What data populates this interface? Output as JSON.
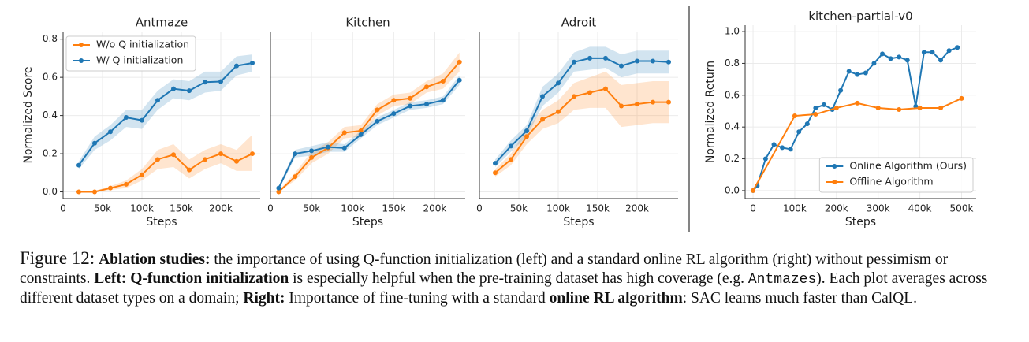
{
  "chart_data": [
    {
      "type": "line",
      "title": "Antmaze",
      "xlabel": "Steps",
      "ylabel": "Normalized Score",
      "xlim": [
        0,
        250000
      ],
      "xticks": [
        0,
        {
          "value": 50000,
          "label": "50k"
        },
        {
          "value": 100000,
          "label": "100k"
        },
        {
          "value": 150000,
          "label": "150k"
        },
        {
          "value": 200000,
          "label": "200k"
        }
      ],
      "ylim": [
        -0.035,
        0.84
      ],
      "yticks": [
        {
          "value": 0,
          "label": "0.0"
        },
        0.2,
        0.4,
        0.6,
        0.8
      ],
      "grid": true,
      "legend": "upper left",
      "x": [
        20000,
        40000,
        60000,
        80000,
        100000,
        120000,
        140000,
        160000,
        180000,
        200000,
        220000,
        240000
      ],
      "series": [
        {
          "name": "W/o Q initialization",
          "color": "#ff7f0e",
          "values": [
            0,
            0,
            0.02,
            0.04,
            0.09,
            0.17,
            0.195,
            0.115,
            0.17,
            0.2,
            0.16,
            0.2
          ],
          "lower": [
            0,
            0,
            0.01,
            0.02,
            0.06,
            0.12,
            0.13,
            0.07,
            0.12,
            0.15,
            0.11,
            0.11
          ],
          "upper": [
            0.003,
            0.005,
            0.03,
            0.06,
            0.12,
            0.22,
            0.25,
            0.17,
            0.22,
            0.25,
            0.22,
            0.3
          ]
        },
        {
          "name": "W/ Q initialization",
          "color": "#1f77b4",
          "values": [
            0.14,
            0.255,
            0.315,
            0.39,
            0.375,
            0.48,
            0.54,
            0.53,
            0.575,
            0.578,
            0.66,
            0.675
          ],
          "lower": [
            0.12,
            0.22,
            0.27,
            0.34,
            0.33,
            0.43,
            0.49,
            0.48,
            0.52,
            0.53,
            0.61,
            0.63
          ],
          "upper": [
            0.16,
            0.29,
            0.35,
            0.43,
            0.43,
            0.53,
            0.59,
            0.58,
            0.63,
            0.63,
            0.71,
            0.72
          ]
        }
      ]
    },
    {
      "type": "line",
      "title": "Kitchen",
      "xlabel": "Steps",
      "xlim": [
        0,
        237000
      ],
      "xticks": [
        0,
        {
          "value": 50000,
          "label": "50k"
        },
        {
          "value": 100000,
          "label": "100k"
        },
        {
          "value": 150000,
          "label": "150k"
        },
        {
          "value": 200000,
          "label": "200k"
        }
      ],
      "ylim": [
        -0.035,
        0.84
      ],
      "ygrid": [
        0,
        0.2,
        0.4,
        0.6,
        0.8
      ],
      "grid": true,
      "x": [
        10000,
        30000,
        50000,
        70000,
        90000,
        110000,
        130000,
        150000,
        170000,
        190000,
        210000,
        230000
      ],
      "series": [
        {
          "color": "#ff7f0e",
          "values": [
            0,
            0.08,
            0.18,
            0.23,
            0.31,
            0.32,
            0.43,
            0.48,
            0.49,
            0.55,
            0.58,
            0.68
          ],
          "lower": [
            0,
            0.06,
            0.15,
            0.2,
            0.28,
            0.29,
            0.4,
            0.45,
            0.46,
            0.52,
            0.54,
            0.63
          ],
          "upper": [
            0.005,
            0.1,
            0.21,
            0.26,
            0.34,
            0.35,
            0.46,
            0.51,
            0.52,
            0.58,
            0.62,
            0.73
          ]
        },
        {
          "color": "#1f77b4",
          "values": [
            0.02,
            0.2,
            0.215,
            0.235,
            0.23,
            0.3,
            0.37,
            0.41,
            0.45,
            0.46,
            0.48,
            0.585
          ],
          "lower": [
            0.01,
            0.18,
            0.19,
            0.21,
            0.21,
            0.28,
            0.35,
            0.39,
            0.43,
            0.44,
            0.46,
            0.56
          ],
          "upper": [
            0.03,
            0.22,
            0.24,
            0.26,
            0.25,
            0.32,
            0.39,
            0.43,
            0.47,
            0.48,
            0.5,
            0.61
          ]
        }
      ]
    },
    {
      "type": "line",
      "title": "Adroit",
      "xlabel": "Steps",
      "xlim": [
        0,
        252000
      ],
      "xticks": [
        0,
        {
          "value": 50000,
          "label": "50k"
        },
        {
          "value": 100000,
          "label": "100k"
        },
        {
          "value": 150000,
          "label": "150k"
        },
        {
          "value": 200000,
          "label": "200k"
        }
      ],
      "ylim": [
        -0.035,
        0.84
      ],
      "ygrid": [
        0,
        0.2,
        0.4,
        0.6,
        0.8
      ],
      "grid": true,
      "x": [
        20000,
        40000,
        60000,
        80000,
        100000,
        120000,
        140000,
        160000,
        180000,
        200000,
        220000,
        240000
      ],
      "series": [
        {
          "color": "#ff7f0e",
          "values": [
            0.1,
            0.17,
            0.29,
            0.38,
            0.42,
            0.5,
            0.52,
            0.54,
            0.45,
            0.46,
            0.47,
            0.47
          ],
          "lower": [
            0.08,
            0.14,
            0.25,
            0.33,
            0.36,
            0.43,
            0.44,
            0.44,
            0.34,
            0.35,
            0.36,
            0.36
          ],
          "upper": [
            0.12,
            0.2,
            0.33,
            0.43,
            0.48,
            0.57,
            0.6,
            0.63,
            0.56,
            0.57,
            0.58,
            0.58
          ]
        },
        {
          "color": "#1f77b4",
          "values": [
            0.15,
            0.24,
            0.32,
            0.5,
            0.57,
            0.68,
            0.7,
            0.7,
            0.66,
            0.685,
            0.685,
            0.68
          ],
          "lower": [
            0.13,
            0.21,
            0.29,
            0.45,
            0.52,
            0.63,
            0.64,
            0.65,
            0.6,
            0.62,
            0.62,
            0.62
          ],
          "upper": [
            0.17,
            0.27,
            0.35,
            0.55,
            0.62,
            0.73,
            0.76,
            0.76,
            0.72,
            0.74,
            0.74,
            0.74
          ]
        }
      ]
    },
    {
      "type": "line",
      "title": "kitchen-partial-v0",
      "xlabel": "Steps",
      "ylabel": "Normalized Return",
      "xlim": [
        -19000,
        535000
      ],
      "xticks": [
        0,
        {
          "value": 100000,
          "label": "100k"
        },
        {
          "value": 200000,
          "label": "200k"
        },
        {
          "value": 300000,
          "label": "300k"
        },
        {
          "value": 400000,
          "label": "400k"
        },
        {
          "value": 500000,
          "label": "500k"
        }
      ],
      "ylim": [
        -0.05,
        1.04
      ],
      "yticks": [
        {
          "value": 0,
          "label": "0.0"
        },
        0.2,
        0.4,
        0.6,
        0.8,
        {
          "value": 1,
          "label": "1.0"
        }
      ],
      "grid": true,
      "legend": "lower right",
      "series": [
        {
          "name": "Online Algorithm (Ours)",
          "color": "#1f77b4",
          "x": [
            0,
            10000,
            30000,
            50000,
            70000,
            90000,
            110000,
            130000,
            150000,
            170000,
            190000,
            210000,
            230000,
            250000,
            270000,
            290000,
            310000,
            330000,
            350000,
            370000,
            390000,
            410000,
            430000,
            450000,
            470000,
            490000
          ],
          "values": [
            0,
            0.03,
            0.2,
            0.29,
            0.27,
            0.26,
            0.37,
            0.42,
            0.52,
            0.54,
            0.51,
            0.63,
            0.75,
            0.73,
            0.74,
            0.8,
            0.86,
            0.83,
            0.84,
            0.82,
            0.53,
            0.87,
            0.87,
            0.82,
            0.88,
            0.9
          ]
        },
        {
          "name": "Offline Algorithm",
          "color": "#ff7f0e",
          "x": [
            0,
            100000,
            150000,
            200000,
            250000,
            300000,
            350000,
            400000,
            450000,
            500000
          ],
          "values": [
            0,
            0.47,
            0.48,
            0.52,
            0.55,
            0.52,
            0.51,
            0.52,
            0.52,
            0.58
          ]
        }
      ]
    }
  ],
  "caption": {
    "label": "Figure 12:",
    "parts": [
      {
        "text": "Ablation studies:",
        "style": "bold"
      },
      {
        "text": " the importance of using Q-function initialization (left) and a standard online RL algorithm (right) without pessimism or constraints. "
      },
      {
        "text": "Left: Q-function initialization",
        "style": "bold"
      },
      {
        "text": " is especially helpful when the pre-training dataset has high coverage (e.g. "
      },
      {
        "text": "Antmazes",
        "style": "mono"
      },
      {
        "text": "). Each plot averages across different dataset types on a domain; "
      },
      {
        "text": "Right:",
        "style": "bold"
      },
      {
        "text": " Importance of fine-tuning with a standard "
      },
      {
        "text": "online RL algorithm",
        "style": "bold"
      },
      {
        "text": ": SAC learns much faster than CalQL."
      }
    ]
  }
}
